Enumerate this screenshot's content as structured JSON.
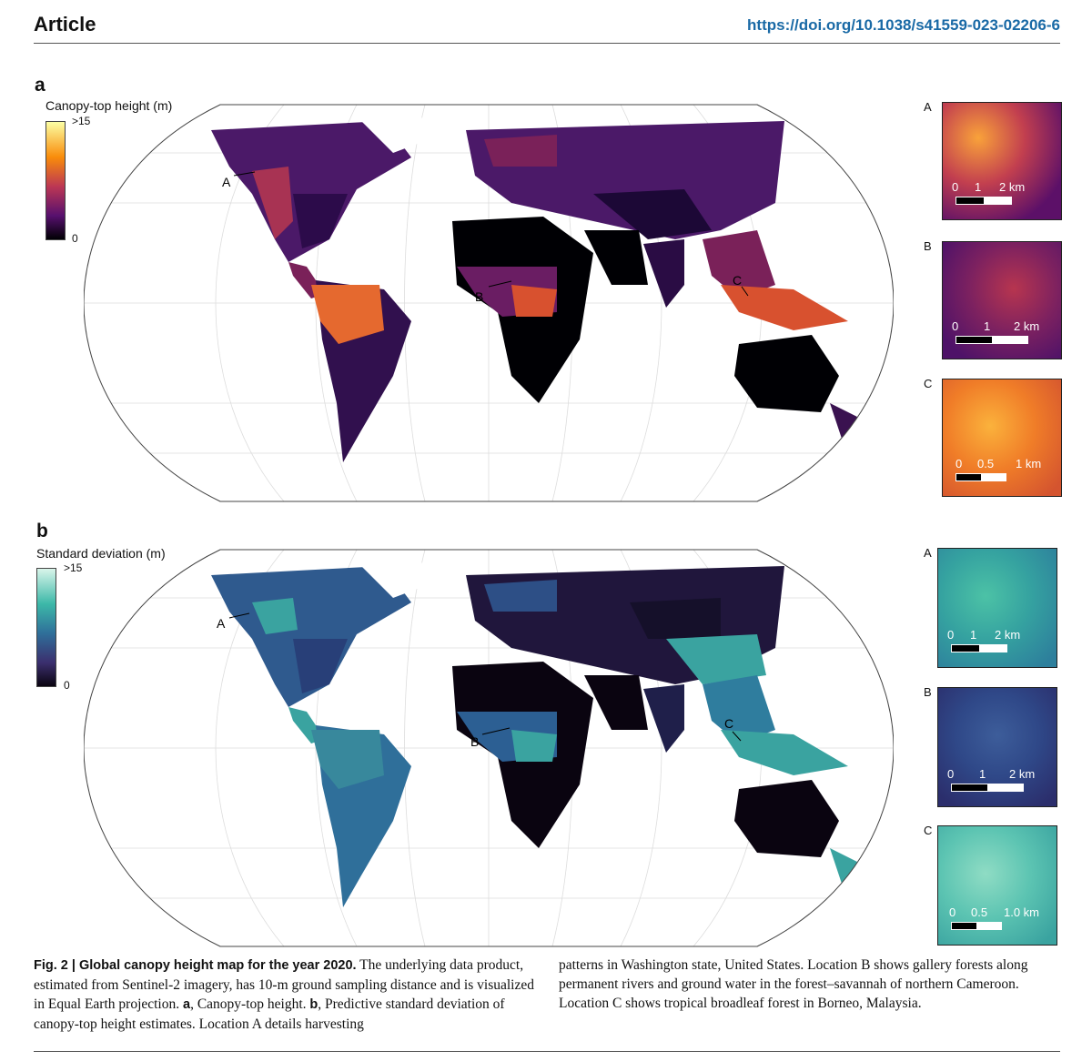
{
  "header": {
    "article": "Article",
    "doi": "https://doi.org/10.1038/s41559-023-02206-6"
  },
  "panel_a": {
    "letter": "a",
    "colorbar_title": "Canopy-top height (m)",
    "tick_max": ">15",
    "tick_min": "0",
    "colors": [
      "#fcffa4",
      "#f98c0a",
      "#bc3754",
      "#57106e",
      "#000004"
    ],
    "markers": [
      "A",
      "B",
      "C"
    ]
  },
  "panel_b": {
    "letter": "b",
    "colorbar_title": "Standard deviation (m)",
    "tick_max": ">15",
    "tick_min": "0",
    "colors": [
      "#d9f5ea",
      "#3cb8a8",
      "#2f6f9a",
      "#3b2f6e",
      "#0a0410"
    ],
    "markers": [
      "A",
      "B",
      "C"
    ]
  },
  "insets_a": [
    {
      "letter": "A",
      "labels": [
        "0",
        "1",
        "2 km"
      ]
    },
    {
      "letter": "B",
      "labels": [
        "0",
        "1",
        "2 km"
      ]
    },
    {
      "letter": "C",
      "labels": [
        "0",
        "0.5",
        "1 km"
      ]
    }
  ],
  "insets_b": [
    {
      "letter": "A",
      "labels": [
        "0",
        "1",
        "2 km"
      ]
    },
    {
      "letter": "B",
      "labels": [
        "0",
        "1",
        "2 km"
      ]
    },
    {
      "letter": "C",
      "labels": [
        "0",
        "0.5",
        "1.0 km"
      ]
    }
  ],
  "caption": {
    "fig_label": "Fig. 2 | Global canopy height map for the year 2020.",
    "left": " The underlying data product, estimated from Sentinel-2 imagery, has 10-m ground sampling distance and is visualized in Equal Earth projection. ",
    "a_bold": "a",
    "a_text": ", Canopy-top height. ",
    "b_bold": "b",
    "b_text": ", Predictive standard deviation of canopy-top height estimates. Location A details harvesting",
    "right": "patterns in Washington state, United States. Location B shows gallery forests along permanent rivers and ground water in the forest–savannah of northern Cameroon. Location C shows tropical broadleaf forest in Borneo, Malaysia."
  }
}
